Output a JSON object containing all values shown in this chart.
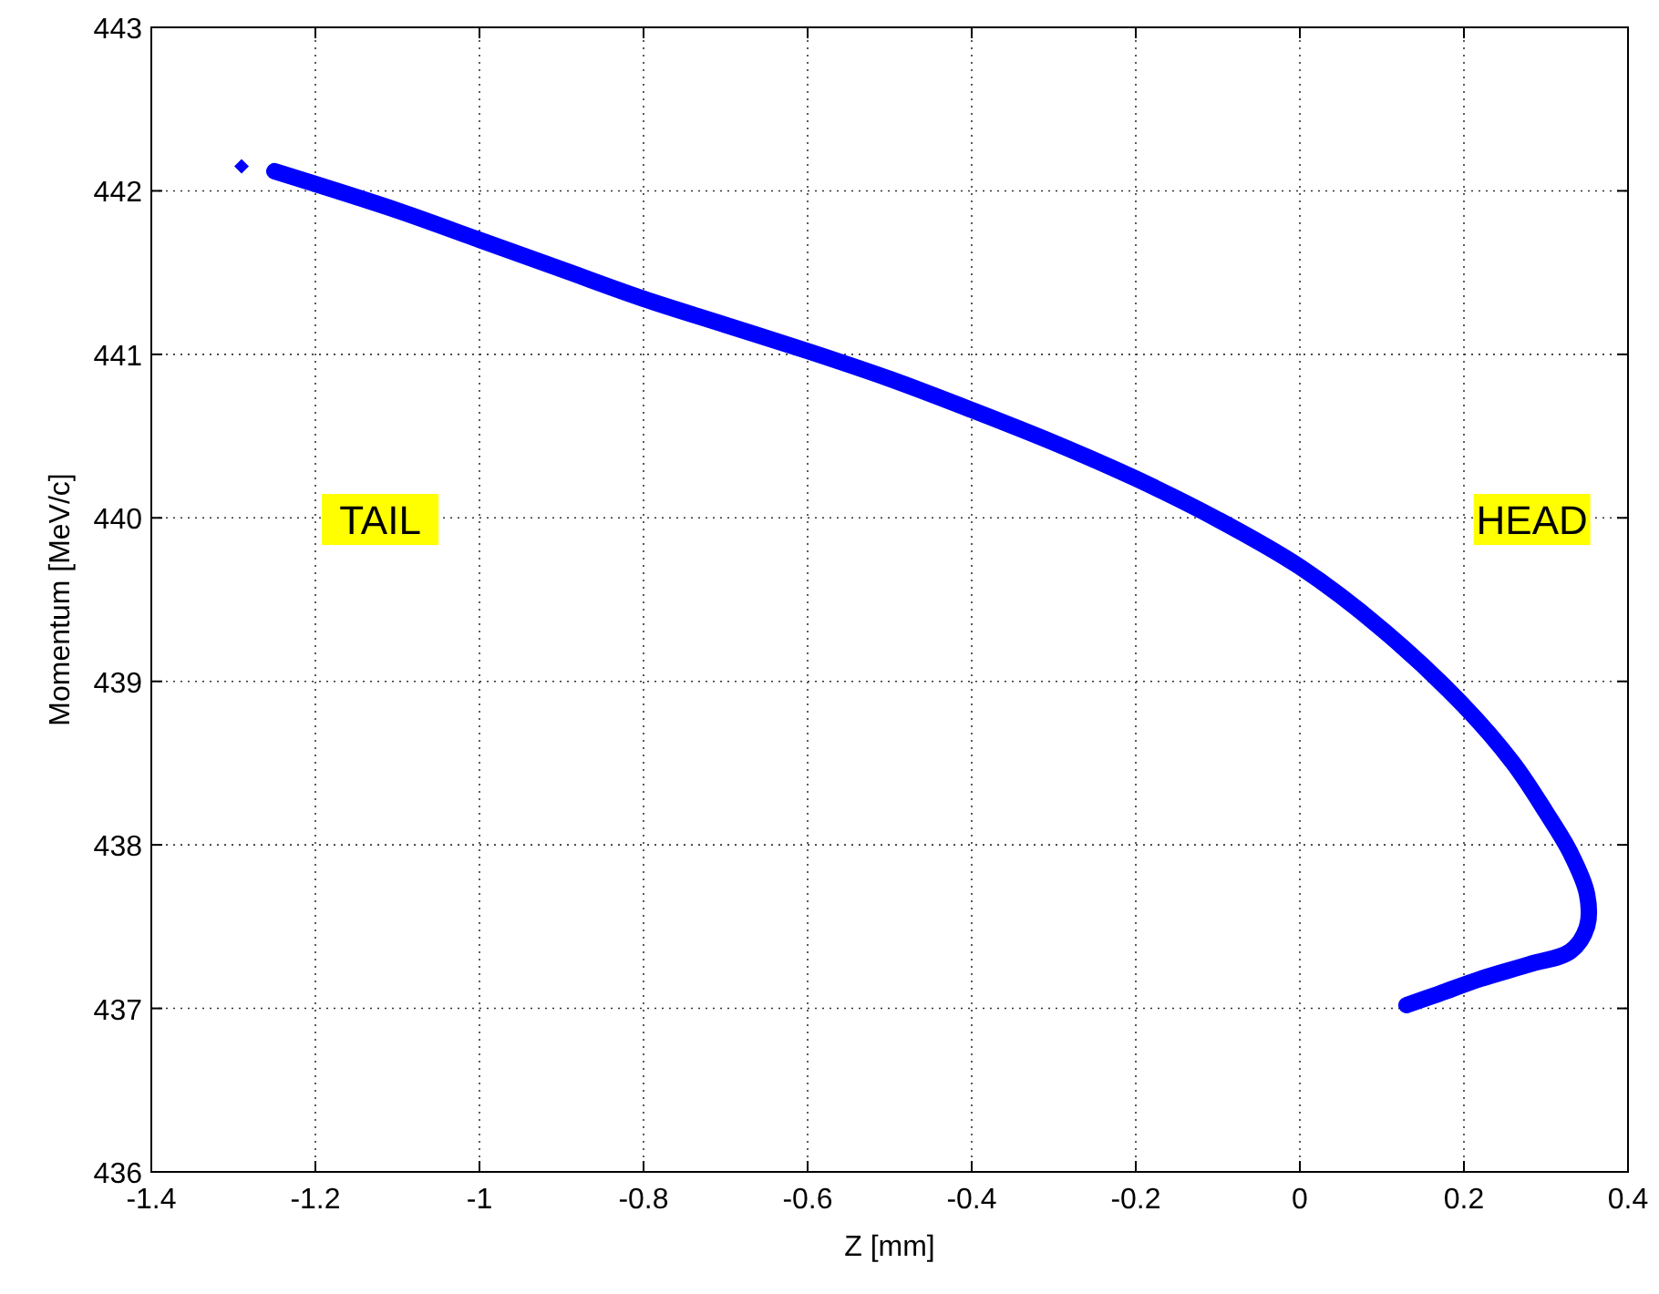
{
  "chart_data": {
    "type": "line",
    "xlabel": "Z [mm]",
    "ylabel": "Momentum [MeV/c]",
    "xlim": [
      -1.4,
      0.4
    ],
    "xticks": [
      -1.4,
      -1.2,
      -1,
      -0.8,
      -0.6,
      -0.4,
      -0.2,
      0,
      0.2,
      0.4
    ],
    "ylim": [
      436,
      443
    ],
    "yticks": [
      436,
      437,
      438,
      439,
      440,
      441,
      442,
      443
    ],
    "grid": true,
    "annotations": [
      "TAIL",
      "HEAD"
    ],
    "series": [
      {
        "type": "scatter",
        "color": "#0000ff",
        "marker": "diamond",
        "x": [
          -1.29
        ],
        "values": [
          442.15
        ]
      },
      {
        "color": "#0000ff",
        "marker": "none",
        "line_style": "solid",
        "x": [
          -1.25,
          -1.1,
          -1.0,
          -0.9,
          -0.8,
          -0.7,
          -0.6,
          -0.5,
          -0.4,
          -0.3,
          -0.2,
          -0.1,
          0,
          0.1,
          0.2,
          0.26,
          0.3,
          0.33,
          0.35,
          0.35,
          0.33,
          0.28,
          0.22,
          0.17,
          0.13
        ],
        "values": [
          442.12,
          441.88,
          441.7,
          441.52,
          441.34,
          441.18,
          441.02,
          440.85,
          440.66,
          440.46,
          440.24,
          439.99,
          439.7,
          439.32,
          438.85,
          438.5,
          438.2,
          437.95,
          437.7,
          437.5,
          437.35,
          437.27,
          437.18,
          437.09,
          437.02
        ]
      }
    ]
  }
}
